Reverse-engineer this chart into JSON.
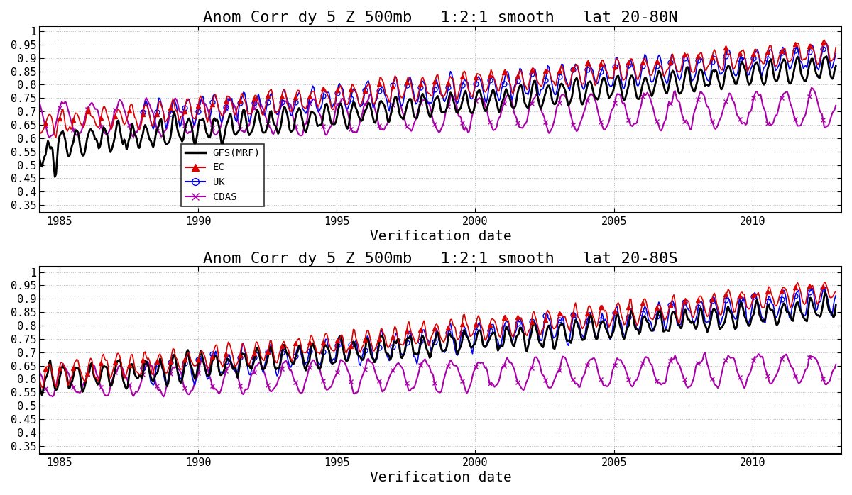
{
  "title_top": "Anom Corr dy 5 Z 500mb   1:2:1 smooth   lat 20-80N",
  "title_bottom": "Anom Corr dy 5 Z 500mb   1:2:1 smooth   lat 20-80S",
  "xlabel": "Verification date",
  "ylim": [
    0.32,
    1.02
  ],
  "yticks": [
    0.35,
    0.4,
    0.45,
    0.5,
    0.55,
    0.6,
    0.65,
    0.7,
    0.75,
    0.8,
    0.85,
    0.9,
    0.95,
    1.0
  ],
  "xstart": 1984.3,
  "xend": 2013.2,
  "xticks": [
    1985,
    1990,
    1995,
    2000,
    2005,
    2010
  ],
  "legend_labels": [
    "GFS(MRF)",
    "EC",
    "UK",
    "CDAS"
  ],
  "gfs_color": "#000000",
  "ec_color": "#dd0000",
  "uk_color": "#0000ee",
  "cdas_color": "#aa00aa",
  "background": "#ffffff",
  "grid_color": "#888888",
  "title_fontsize": 16,
  "tick_fontsize": 11,
  "xlabel_fontsize": 14
}
